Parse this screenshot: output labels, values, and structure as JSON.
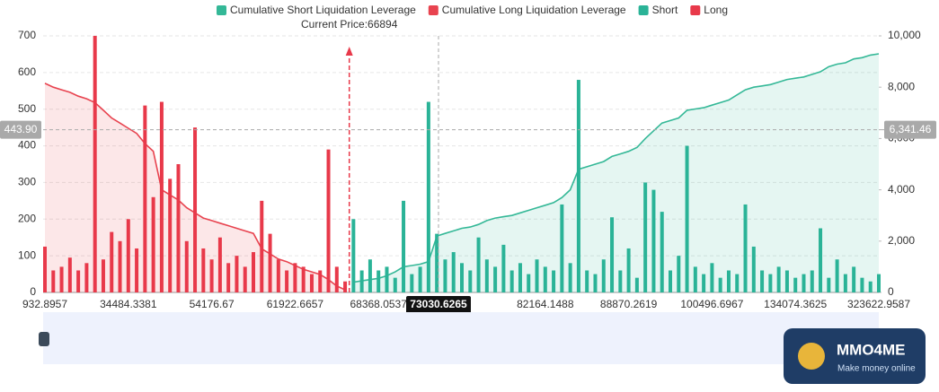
{
  "chart_data": {
    "type": "bar",
    "current_price_label": "Current Price:66894",
    "categories": [
      "932.8957",
      null,
      null,
      null,
      null,
      null,
      null,
      null,
      null,
      null,
      "34484.3381",
      null,
      null,
      null,
      null,
      null,
      null,
      null,
      null,
      null,
      "54176.67",
      null,
      null,
      null,
      null,
      null,
      null,
      null,
      null,
      null,
      "61922.6657",
      null,
      null,
      null,
      null,
      null,
      null,
      null,
      null,
      null,
      "68368.0537",
      null,
      null,
      null,
      null,
      null,
      null,
      null,
      null,
      null,
      null,
      null,
      null,
      null,
      null,
      null,
      null,
      null,
      null,
      null,
      "82164.1488",
      null,
      null,
      null,
      null,
      null,
      null,
      null,
      null,
      null,
      "88870.2619",
      null,
      null,
      null,
      null,
      null,
      null,
      null,
      null,
      null,
      "100496.6967",
      null,
      null,
      null,
      null,
      null,
      null,
      null,
      null,
      null,
      "134074.3625",
      null,
      null,
      null,
      null,
      null,
      null,
      null,
      null,
      null,
      "323622.9587"
    ],
    "ylim": [
      0,
      700
    ],
    "yticks": [
      0,
      100,
      200,
      300,
      400,
      500,
      600,
      700
    ],
    "y2lim": [
      0,
      10000
    ],
    "y2ticks": [
      0,
      {
        "value": 2000,
        "label": "2,000"
      },
      {
        "value": 4000,
        "label": "4,000"
      },
      {
        "value": 6000,
        "label": "6,000"
      },
      {
        "value": 8000,
        "label": "8,000"
      },
      {
        "value": 10000,
        "label": "10,000"
      }
    ],
    "grid": true,
    "series": [
      {
        "name": "Cumulative Short Liquidation Leverage",
        "type": "line",
        "axis": "y2",
        "color": "#34b897",
        "values": [
          null,
          null,
          null,
          null,
          null,
          null,
          null,
          null,
          null,
          null,
          null,
          null,
          null,
          null,
          null,
          null,
          null,
          null,
          null,
          null,
          null,
          null,
          null,
          null,
          null,
          null,
          null,
          null,
          null,
          null,
          null,
          null,
          null,
          null,
          null,
          null,
          null,
          400,
          450,
          500,
          550,
          650,
          800,
          1000,
          1050,
          1100,
          1200,
          2200,
          2300,
          2400,
          2500,
          2550,
          2650,
          2800,
          2900,
          2950,
          3000,
          3100,
          3200,
          3300,
          3400,
          3500,
          3700,
          4000,
          4800,
          4900,
          5000,
          5100,
          5300,
          5400,
          5500,
          5650,
          6000,
          6300,
          6600,
          6700,
          6800,
          7100,
          7150,
          7200,
          7300,
          7400,
          7500,
          7700,
          7900,
          8000,
          8050,
          8100,
          8200,
          8300,
          8350,
          8400,
          8500,
          8600,
          8800,
          8900,
          8950,
          9100,
          9150,
          9250,
          9300
        ]
      },
      {
        "name": "Cumulative Long Liquidation Leverage",
        "type": "line",
        "axis": "y2",
        "color": "#e8434f",
        "values": [
          8150,
          8000,
          7900,
          7800,
          7650,
          7550,
          7400,
          7100,
          6800,
          6600,
          6400,
          6200,
          5800,
          5500,
          4000,
          3800,
          3600,
          3300,
          3100,
          2900,
          2800,
          2700,
          2600,
          2500,
          2400,
          2300,
          1700,
          1500,
          1300,
          1200,
          1050,
          900,
          800,
          700,
          500,
          250,
          100,
          null,
          null,
          null,
          null,
          null,
          null,
          null,
          null,
          null,
          null,
          null,
          null,
          null,
          null,
          null,
          null,
          null,
          null,
          null,
          null,
          null,
          null,
          null,
          null,
          null,
          null,
          null,
          null,
          null,
          null,
          null,
          null,
          null,
          null,
          null,
          null,
          null,
          null,
          null,
          null,
          null,
          null,
          null,
          null,
          null,
          null,
          null,
          null,
          null,
          null,
          null,
          null,
          null,
          null,
          null,
          null,
          null,
          null,
          null,
          null,
          null,
          null,
          null,
          null
        ]
      },
      {
        "name": "Short",
        "type": "bar",
        "color": "#2ab397",
        "values": [
          null,
          null,
          null,
          null,
          null,
          null,
          null,
          null,
          null,
          null,
          null,
          null,
          null,
          null,
          null,
          null,
          null,
          null,
          null,
          null,
          null,
          null,
          null,
          null,
          null,
          null,
          null,
          null,
          null,
          null,
          null,
          null,
          null,
          null,
          null,
          null,
          null,
          200,
          60,
          90,
          60,
          70,
          40,
          250,
          50,
          70,
          520,
          160,
          90,
          110,
          80,
          60,
          150,
          90,
          70,
          130,
          60,
          80,
          50,
          90,
          70,
          60,
          240,
          80,
          580,
          60,
          50,
          90,
          205,
          60,
          120,
          40,
          300,
          280,
          220,
          60,
          100,
          400,
          70,
          50,
          80,
          40,
          60,
          50,
          240,
          125,
          60,
          50,
          70,
          60,
          40,
          50,
          60,
          175,
          40,
          90,
          50,
          70,
          40,
          30,
          50
        ]
      },
      {
        "name": "Long",
        "type": "bar",
        "color": "#e8394a",
        "values": [
          125,
          60,
          70,
          95,
          60,
          80,
          700,
          90,
          165,
          140,
          200,
          120,
          510,
          260,
          520,
          310,
          350,
          140,
          450,
          120,
          90,
          150,
          80,
          100,
          70,
          110,
          250,
          160,
          90,
          60,
          80,
          70,
          50,
          60,
          390,
          70,
          30,
          null,
          null,
          null,
          null,
          null,
          null,
          null,
          null,
          null,
          null,
          null,
          null,
          null,
          null,
          null,
          null,
          null,
          null,
          null,
          null,
          null,
          null,
          null,
          null,
          null,
          null,
          null,
          null,
          null,
          null,
          null,
          null,
          null,
          null,
          null,
          null,
          null,
          null,
          null,
          null,
          null,
          null,
          null,
          null,
          null,
          null,
          null,
          null,
          null,
          null,
          null,
          null,
          null,
          null,
          null,
          null,
          null,
          null,
          null,
          null,
          null,
          null,
          null,
          null
        ]
      }
    ],
    "crosshair": {
      "x_label": "73030.6265",
      "left": {
        "value": 443.9,
        "label": "443.90"
      },
      "right": {
        "value": 6341.46,
        "label": "6,341.46"
      }
    }
  },
  "watermark": {
    "title": "MMO4ME",
    "subtitle": "Make money online"
  }
}
